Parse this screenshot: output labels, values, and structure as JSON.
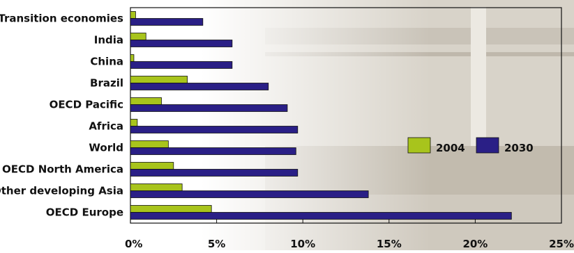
{
  "chart_data": {
    "type": "bar",
    "orientation": "horizontal",
    "categories": [
      "Transition economies",
      "India",
      "China",
      "Brazil",
      "OECD Pacific",
      "Africa",
      "World",
      "OECD North America",
      "Other developing Asia",
      "OECD Europe"
    ],
    "series": [
      {
        "name": "2004",
        "color": "#a8c41c",
        "values": [
          0.3,
          0.9,
          0.2,
          3.3,
          1.8,
          0.4,
          2.2,
          2.5,
          3.0,
          4.7
        ]
      },
      {
        "name": "2030",
        "color": "#2a1f86",
        "values": [
          4.2,
          5.9,
          5.9,
          8.0,
          9.1,
          9.7,
          9.6,
          9.7,
          13.8,
          22.1
        ]
      }
    ],
    "xlim": [
      0,
      25
    ],
    "xticks": [
      0,
      5,
      10,
      15,
      20,
      25
    ],
    "xtick_labels": [
      "0%",
      "5%",
      "10%",
      "15%",
      "20%",
      "25%"
    ],
    "grid": false,
    "legend": {
      "position": "right",
      "entries": [
        "2004",
        "2030"
      ]
    },
    "title": "",
    "xlabel": "",
    "ylabel": ""
  }
}
